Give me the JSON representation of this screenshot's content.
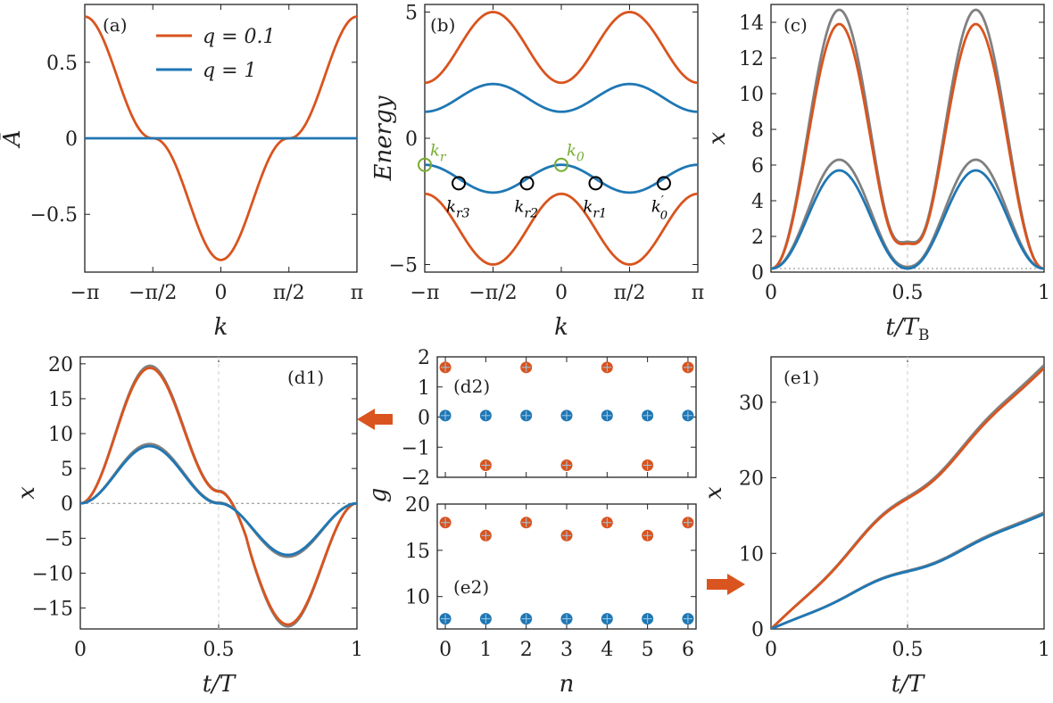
{
  "colors": {
    "orange": "#D9541E",
    "blue": "#1F77B4",
    "gray": "#808080",
    "green": "#77AC30",
    "black": "#000000"
  },
  "chart_data": [
    {
      "id": "a",
      "type": "line",
      "tag": "(a)",
      "xlabel": "k",
      "ylabel": "Ā",
      "xlim": [
        -3.1416,
        3.1416
      ],
      "ylim": [
        -0.88,
        0.88
      ],
      "xticks": [
        -3.1416,
        -1.5708,
        0,
        1.5708,
        3.1416
      ],
      "xticklabels": [
        "−π",
        "−π/2",
        "0",
        "π/2",
        "π"
      ],
      "yticks": [
        -0.5,
        0,
        0.5
      ],
      "yticklabels": [
        "−0.5",
        "0",
        "0.5"
      ],
      "legend_position": "top-center",
      "series": [
        {
          "name": "q = 0.1",
          "color": "orange",
          "x": [
            -3.14,
            -3.0,
            -2.8,
            -2.6,
            -2.4,
            -2.2,
            -2.0,
            -1.8,
            -1.57,
            -1.3,
            -1.0,
            -0.7,
            -0.4,
            -0.2,
            0,
            0.2,
            0.4,
            0.7,
            1.0,
            1.3,
            1.57,
            1.8,
            2.0,
            2.2,
            2.4,
            2.6,
            2.8,
            3.0,
            3.14
          ],
          "y": [
            0.82,
            0.7,
            0.52,
            0.34,
            0.2,
            0.1,
            0.04,
            0.01,
            0,
            -0.04,
            -0.12,
            -0.28,
            -0.52,
            -0.7,
            -0.8,
            -0.7,
            -0.52,
            -0.28,
            -0.12,
            -0.04,
            0,
            0.01,
            0.04,
            0.1,
            0.2,
            0.34,
            0.52,
            0.7,
            0.82
          ]
        },
        {
          "name": "q = 1",
          "color": "blue",
          "x": [
            -3.14,
            3.14
          ],
          "y": [
            0,
            0
          ]
        }
      ]
    },
    {
      "id": "b",
      "type": "line",
      "tag": "(b)",
      "xlabel": "k",
      "ylabel": "Energy",
      "xlim": [
        -3.1416,
        3.1416
      ],
      "ylim": [
        -5.3,
        5.3
      ],
      "xticks": [
        -3.1416,
        -1.5708,
        0,
        1.5708,
        3.1416
      ],
      "xticklabels": [
        "−π",
        "−π/2",
        "0",
        "π/2",
        "π"
      ],
      "yticks": [
        -5,
        0,
        5
      ],
      "yticklabels": [
        "−5",
        "0",
        "5"
      ],
      "bands": [
        {
          "color": "orange",
          "form": "cos2",
          "center": 3.6,
          "amp": -1.4
        },
        {
          "color": "blue",
          "form": "cos2",
          "center": 1.6,
          "amp": -0.55
        },
        {
          "color": "blue",
          "form": "cos2",
          "center": -1.6,
          "amp": 0.55
        },
        {
          "color": "orange",
          "form": "cos2",
          "center": -3.6,
          "amp": 1.4
        }
      ],
      "markers": [
        {
          "label": "k_r",
          "text": "k",
          "sub": "r",
          "x": -3.1416,
          "y": -1.05,
          "color": "green",
          "label_side": "above-right"
        },
        {
          "label": "k_0",
          "text": "k",
          "sub": "0",
          "x": 0,
          "y": -1.05,
          "color": "green",
          "label_side": "above-right"
        },
        {
          "label": "k_r3",
          "text": "k",
          "sub": "r3",
          "x": -2.36,
          "y": -1.78,
          "color": "black",
          "label_side": "below"
        },
        {
          "label": "k_r2",
          "text": "k",
          "sub": "r2",
          "x": -0.79,
          "y": -1.78,
          "color": "black",
          "label_side": "below"
        },
        {
          "label": "k_r1",
          "text": "k",
          "sub": "r1",
          "x": 0.79,
          "y": -1.78,
          "color": "black",
          "label_side": "below"
        },
        {
          "label": "k'_0",
          "text": "k",
          "sub": "0",
          "sup": "′",
          "x": 2.36,
          "y": -1.78,
          "color": "black",
          "label_side": "below"
        }
      ]
    },
    {
      "id": "c",
      "type": "line",
      "tag": "(c)",
      "xlabel": "t/T_B",
      "ylabel": "x",
      "xlim": [
        0,
        1
      ],
      "ylim": [
        0,
        15
      ],
      "xticks": [
        0,
        0.5,
        1
      ],
      "xticklabels": [
        "0",
        "0.5",
        "1"
      ],
      "yticks": [
        0,
        2,
        4,
        6,
        8,
        10,
        12,
        14
      ],
      "yticklabels": [
        "0",
        "2",
        "4",
        "6",
        "8",
        "10",
        "12",
        "14"
      ],
      "vline": 0.5,
      "hline": 0.2,
      "series": [
        {
          "name": "gray-large",
          "color": "gray",
          "form": "double_hump",
          "base": 0.2,
          "peak": 14.7,
          "mid": 1.7
        },
        {
          "name": "orange",
          "color": "orange",
          "form": "double_hump",
          "base": 0.2,
          "peak": 13.9,
          "mid": 1.6
        },
        {
          "name": "gray-small",
          "color": "gray",
          "form": "double_hump",
          "base": 0.2,
          "peak": 6.3,
          "mid": 0.3
        },
        {
          "name": "blue",
          "color": "blue",
          "form": "double_hump",
          "base": 0.2,
          "peak": 5.7,
          "mid": 0.2
        }
      ]
    },
    {
      "id": "d1",
      "type": "line",
      "tag": "(d1)",
      "xlabel": "t/T",
      "ylabel": "x",
      "xlim": [
        0,
        1
      ],
      "ylim": [
        -18,
        21
      ],
      "xticks": [
        0,
        0.5,
        1
      ],
      "xticklabels": [
        "0",
        "0.5",
        "1"
      ],
      "yticks": [
        -15,
        -10,
        -5,
        0,
        5,
        10,
        15,
        20
      ],
      "yticklabels": [
        "−15",
        "−10",
        "−5",
        "0",
        "5",
        "10",
        "15",
        "20"
      ],
      "vline": 0.5,
      "hline": 0,
      "series": [
        {
          "name": "gray-large",
          "color": "gray",
          "form": "antisym",
          "amp": 19.6,
          "plateau": 1.8
        },
        {
          "name": "orange",
          "color": "orange",
          "form": "antisym",
          "amp": 19.3,
          "plateau": 1.7
        },
        {
          "name": "gray-small",
          "color": "gray",
          "form": "antisym",
          "amp": 8.5,
          "plateau": 0.1
        },
        {
          "name": "blue",
          "color": "blue",
          "form": "antisym",
          "amp": 8.2,
          "plateau": 0.0
        }
      ]
    },
    {
      "id": "d2",
      "type": "scatter",
      "tag": "(d2)",
      "xlabel": "",
      "ylabel": "",
      "xlim": [
        -0.2,
        6.2
      ],
      "ylim": [
        -2,
        2
      ],
      "yticks": [
        -2,
        -1,
        0,
        1,
        2
      ],
      "yticklabels": [
        "−2",
        "−1",
        "0",
        "1",
        "2"
      ],
      "xticks": [
        0,
        1,
        2,
        3,
        4,
        5,
        6
      ],
      "xticklabels": [],
      "series": [
        {
          "name": "orange",
          "color": "orange",
          "x": [
            0,
            1,
            2,
            3,
            4,
            5,
            6
          ],
          "y": [
            1.65,
            -1.6,
            1.65,
            -1.6,
            1.65,
            -1.6,
            1.65
          ]
        },
        {
          "name": "blue",
          "color": "blue",
          "x": [
            0,
            1,
            2,
            3,
            4,
            5,
            6
          ],
          "y": [
            0.05,
            0.05,
            0.05,
            0.05,
            0.05,
            0.05,
            0.05
          ]
        }
      ]
    },
    {
      "id": "e2",
      "type": "scatter",
      "tag": "(e2)",
      "xlabel": "n",
      "ylabel": "",
      "xlim": [
        -0.2,
        6.2
      ],
      "ylim": [
        6.5,
        20
      ],
      "yticks": [
        10,
        15,
        20
      ],
      "yticklabels": [
        "10",
        "15",
        "20"
      ],
      "xticks": [
        0,
        1,
        2,
        3,
        4,
        5,
        6
      ],
      "xticklabels": [
        "0",
        "1",
        "2",
        "3",
        "4",
        "5",
        "6"
      ],
      "series": [
        {
          "name": "orange",
          "color": "orange",
          "x": [
            0,
            1,
            2,
            3,
            4,
            5,
            6
          ],
          "y": [
            18.0,
            16.6,
            18.0,
            16.6,
            18.0,
            16.6,
            18.0
          ]
        },
        {
          "name": "blue",
          "color": "blue",
          "x": [
            0,
            1,
            2,
            3,
            4,
            5,
            6
          ],
          "y": [
            7.6,
            7.6,
            7.6,
            7.6,
            7.6,
            7.6,
            7.6
          ]
        }
      ]
    },
    {
      "id": "e1",
      "type": "line",
      "tag": "(e1)",
      "xlabel": "t/T",
      "ylabel": "x",
      "xlim": [
        0,
        1
      ],
      "ylim": [
        0,
        36
      ],
      "xticks": [
        0,
        0.5,
        1
      ],
      "xticklabels": [
        "0",
        "0.5",
        "1"
      ],
      "yticks": [
        0,
        10,
        20,
        30
      ],
      "yticklabels": [
        "0",
        "10",
        "20",
        "30"
      ],
      "vline": 0.5,
      "series": [
        {
          "name": "gray-large",
          "color": "gray",
          "form": "staircase",
          "end": 34.9,
          "wiggle": 3.0
        },
        {
          "name": "orange",
          "color": "orange",
          "form": "staircase",
          "end": 34.5,
          "wiggle": 3.0
        },
        {
          "name": "gray-small",
          "color": "gray",
          "form": "staircase",
          "end": 15.4,
          "wiggle": 1.5
        },
        {
          "name": "blue",
          "color": "blue",
          "form": "staircase",
          "end": 15.2,
          "wiggle": 1.5
        }
      ]
    }
  ],
  "shared_ylabel_g": "g",
  "arrows": [
    {
      "name": "arrow-to-d1",
      "color": "orange",
      "direction": "left"
    },
    {
      "name": "arrow-to-e1",
      "color": "orange",
      "direction": "right"
    }
  ]
}
